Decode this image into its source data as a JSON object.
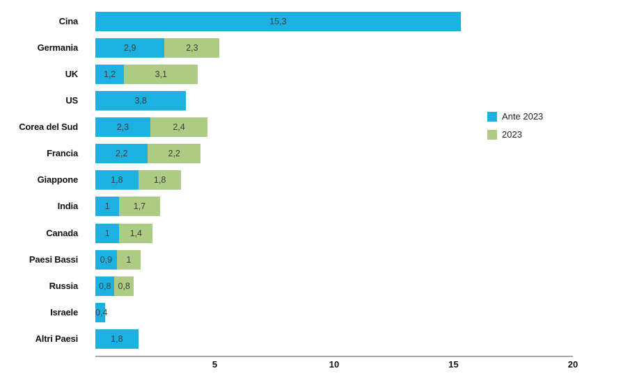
{
  "chart_data": {
    "type": "bar",
    "orientation": "horizontal",
    "stacked": true,
    "title": "",
    "xlabel": "",
    "ylabel": "",
    "categories": [
      "Cina",
      "Germania",
      "UK",
      "US",
      "Corea del Sud",
      "Francia",
      "Giappone",
      "India",
      "Canada",
      "Paesi Bassi",
      "Russia",
      "Israele",
      "Altri Paesi"
    ],
    "series": [
      {
        "name": "Ante 2023",
        "color": "#1cb1e1",
        "values": [
          15.3,
          2.9,
          1.2,
          3.8,
          2.3,
          2.2,
          1.8,
          1,
          1,
          0.9,
          0.8,
          0.4,
          1.8
        ],
        "labels": [
          "15,3",
          "2,9",
          "1,2",
          "3,8",
          "2,3",
          "2,2",
          "1,8",
          "1",
          "1",
          "0,9",
          "0,8",
          "0,4",
          "1,8"
        ]
      },
      {
        "name": "2023",
        "color": "#aecb84",
        "values": [
          0,
          2.3,
          3.1,
          0,
          2.4,
          2.2,
          1.8,
          1.7,
          1.4,
          1,
          0.8,
          0,
          0
        ],
        "labels": [
          "",
          "2,3",
          "3,1",
          "",
          "2,4",
          "2,2",
          "1,8",
          "1,7",
          "1,4",
          "1",
          "0,8",
          "",
          ""
        ]
      }
    ],
    "xlim": [
      0,
      20
    ],
    "xticks": [
      5,
      10,
      15,
      20
    ],
    "xtick_labels": [
      "5",
      "10",
      "15",
      "20"
    ],
    "grid": false,
    "legend_position": "right",
    "value_label_color": "#3b3b3b",
    "axis_line_color": "#a6a6a6"
  }
}
